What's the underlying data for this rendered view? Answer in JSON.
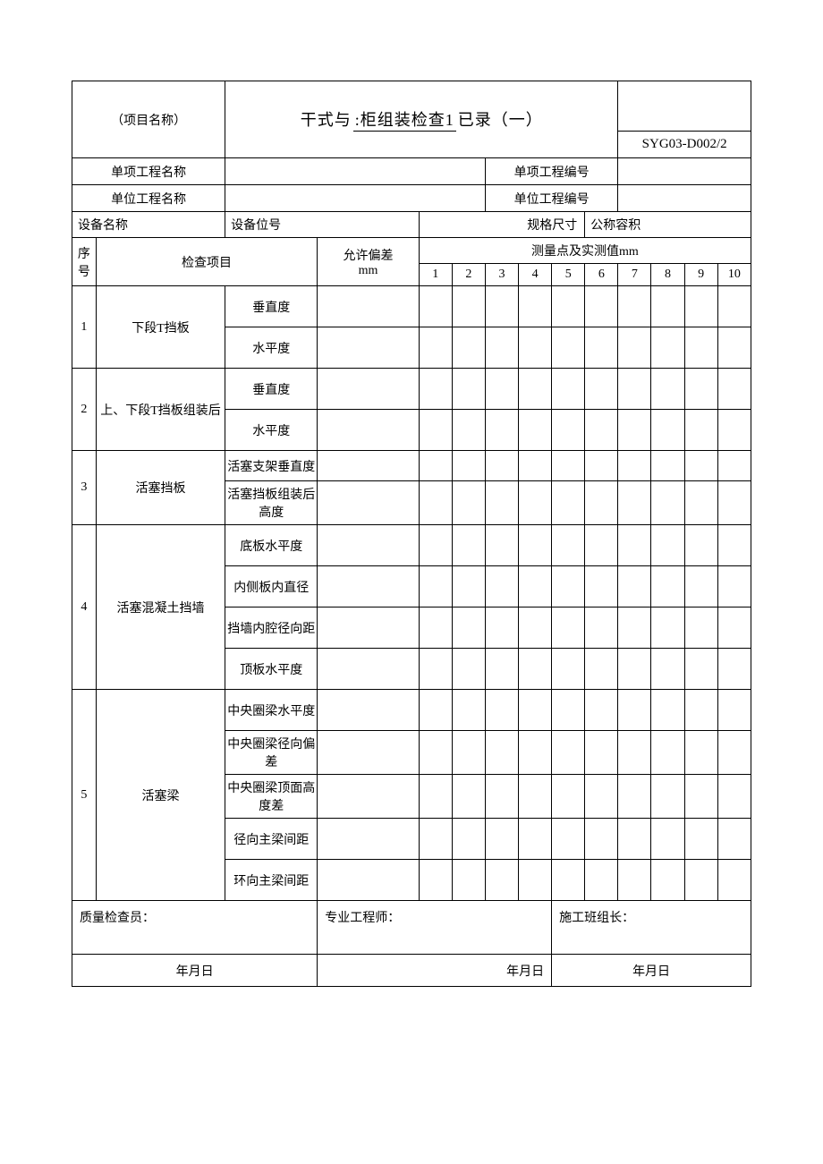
{
  "header": {
    "project_name_label": "（项目名称）",
    "title_prefix": "干式与",
    "title_mid": ":柜组装检查1",
    "title_suffix": "已录（一）",
    "form_code": "SYG03-D002/2"
  },
  "info": {
    "single_project_name_label": "单项工程名称",
    "single_project_code_label": "单项工程编号",
    "unit_project_name_label": "单位工程名称",
    "unit_project_code_label": "单位工程编号"
  },
  "spec": {
    "equip_name_label": "设备名称",
    "equip_no_label": "设备位号",
    "spec_size_label": "规格尺寸",
    "nominal_volume_label": "公称容积"
  },
  "columns": {
    "seq_label": "序号",
    "check_item_label": "检查项目",
    "tolerance_label": "允许偏差",
    "tolerance_unit": "mm",
    "measure_header": "测量点及实测值mm",
    "points": [
      "1",
      "2",
      "3",
      "4",
      "5",
      "6",
      "7",
      "8",
      "9",
      "10"
    ]
  },
  "rows": [
    {
      "seq": "1",
      "item": "下段T挡板",
      "subs": [
        "垂直度",
        "水平度"
      ],
      "row_class": "data-row"
    },
    {
      "seq": "2",
      "item": "上、下段T挡板组装后",
      "subs": [
        "垂直度",
        "水平度"
      ],
      "row_class": "data-row"
    },
    {
      "seq": "3",
      "item": "活塞挡板",
      "subs": [
        "活塞支架垂直度",
        "活塞挡板组装后高度"
      ],
      "row_class": "data-row-sm"
    },
    {
      "seq": "4",
      "item": "活塞混凝土挡墙",
      "subs": [
        "底板水平度",
        "内侧板内直径",
        "挡墙内腔径向距",
        "顶板水平度"
      ],
      "row_class": "data-row"
    },
    {
      "seq": "5",
      "item": "活塞梁",
      "subs": [
        "中央圈梁水平度",
        "中央圈梁径向偏差",
        "中央圈梁顶面高度差",
        "径向主梁间距",
        "环向主梁间距"
      ],
      "row_class": "data-row"
    }
  ],
  "signatures": {
    "quality_inspector": "质量检查员：",
    "professional_engineer": "专业工程师：",
    "team_leader": "施工班组长：",
    "date_label": "年月日"
  },
  "style": {
    "border_color": "#000000",
    "bg_color": "#ffffff",
    "text_color": "#000000"
  }
}
